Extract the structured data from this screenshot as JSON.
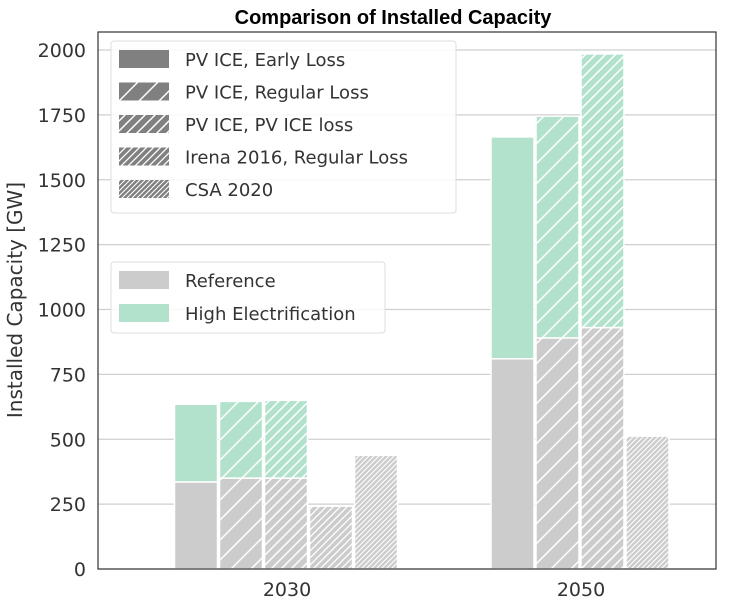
{
  "chart_data": {
    "type": "bar",
    "title": "Comparison of Installed Capacity",
    "xlabel": "",
    "ylabel": "Installed Capacity [GW]",
    "ylim": [
      0,
      2050
    ],
    "yticks": [
      "0",
      "250",
      "500",
      "750",
      "1000",
      "1250",
      "1500",
      "1750",
      "2000"
    ],
    "categories": [
      "2030",
      "2050"
    ],
    "grid": true,
    "series": [
      {
        "name": "PV ICE, Early Loss",
        "hatch": "",
        "reference": [
          335,
          810
        ],
        "high_electrification": [
          635,
          1665
        ]
      },
      {
        "name": "PV ICE, Regular Loss",
        "hatch": "/",
        "reference": [
          350,
          890
        ],
        "high_electrification": [
          646,
          1745
        ]
      },
      {
        "name": "PV ICE, PV ICE loss",
        "hatch": "//",
        "reference": [
          350,
          930
        ],
        "high_electrification": [
          650,
          1985
        ]
      },
      {
        "name": "Irena 2016, Regular Loss",
        "hatch": "///",
        "reference": [
          242,
          null
        ],
        "high_electrification": [
          null,
          null
        ]
      },
      {
        "name": "CSA 2020",
        "hatch": "////",
        "reference": [
          438,
          512
        ],
        "high_electrification": [
          null,
          null
        ]
      }
    ],
    "scenario_legend": [
      {
        "name": "Reference",
        "color": "#cccccc"
      },
      {
        "name": "High Electrification",
        "color": "#b2e2cc"
      }
    ],
    "legend_placement": "top-left"
  }
}
